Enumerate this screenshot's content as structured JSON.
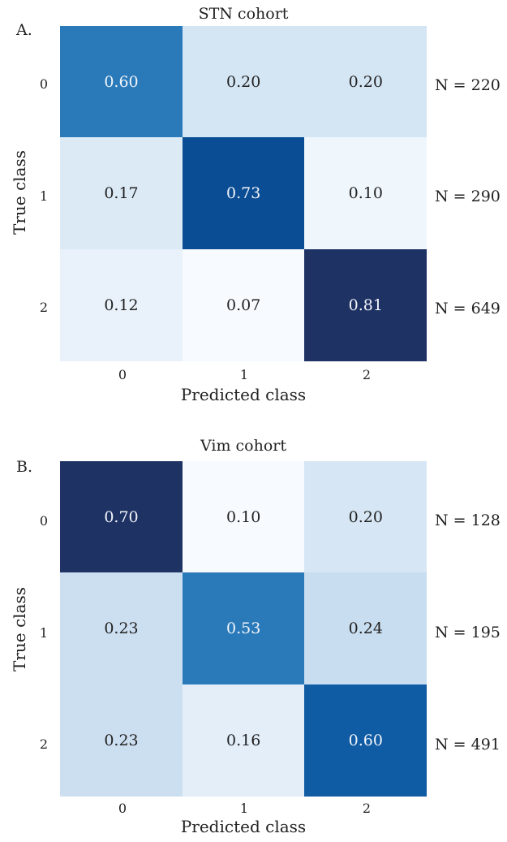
{
  "chart_data": [
    {
      "type": "heatmap",
      "panel_label": "A.",
      "title": "STN cohort",
      "xlabel": "Predicted class",
      "ylabel": "True class",
      "x_ticks": [
        "0",
        "1",
        "2"
      ],
      "y_ticks": [
        "0",
        "1",
        "2"
      ],
      "values": [
        [
          0.6,
          0.2,
          0.2
        ],
        [
          0.17,
          0.73,
          0.1
        ],
        [
          0.12,
          0.07,
          0.81
        ]
      ],
      "value_labels": [
        [
          "0.60",
          "0.20",
          "0.20"
        ],
        [
          "0.17",
          "0.73",
          "0.10"
        ],
        [
          "0.12",
          "0.07",
          "0.81"
        ]
      ],
      "row_counts": [
        "N = 220",
        "N = 290",
        "N = 649"
      ],
      "colormap": "Blues"
    },
    {
      "type": "heatmap",
      "panel_label": "B.",
      "title": "Vim cohort",
      "xlabel": "Predicted class",
      "ylabel": "True class",
      "x_ticks": [
        "0",
        "1",
        "2"
      ],
      "y_ticks": [
        "0",
        "1",
        "2"
      ],
      "values": [
        [
          0.7,
          0.1,
          0.2
        ],
        [
          0.23,
          0.53,
          0.24
        ],
        [
          0.23,
          0.16,
          0.6
        ]
      ],
      "value_labels": [
        [
          "0.70",
          "0.10",
          "0.20"
        ],
        [
          "0.23",
          "0.53",
          "0.24"
        ],
        [
          "0.23",
          "0.16",
          "0.60"
        ]
      ],
      "row_counts": [
        "N = 128",
        "N = 195",
        "N = 491"
      ],
      "colormap": "Blues"
    }
  ]
}
